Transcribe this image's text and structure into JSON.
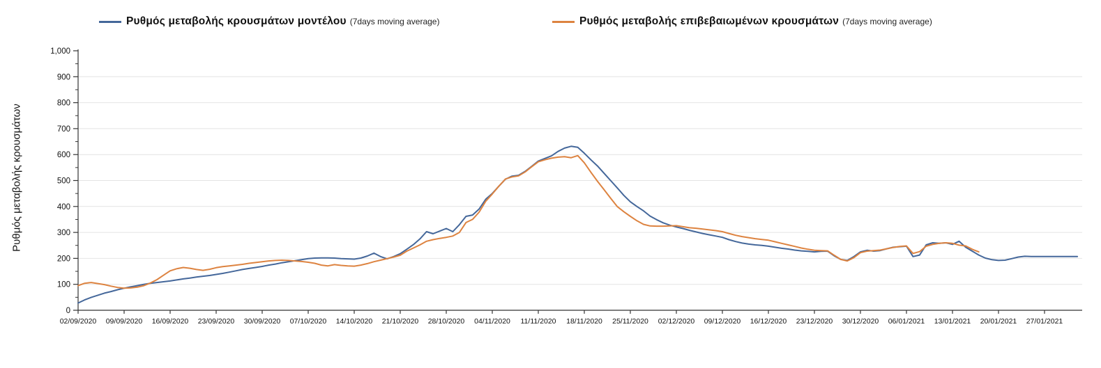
{
  "legend": {
    "items": [
      {
        "suffix": "(7days moving average)"
      },
      {
        "suffix": "(7days moving average)"
      }
    ]
  },
  "chart_data": {
    "type": "line",
    "title": "",
    "xlabel": "",
    "ylabel": "Ρυθμός μεταβολής κρουσμάτων",
    "ylim": [
      0,
      1000
    ],
    "y_tick_step": 100,
    "y_minor_tick_step": 50,
    "grid": "horizontal-light",
    "legend_position": "top",
    "y_tick_labels": [
      "0",
      "100",
      "200",
      "300",
      "400",
      "500",
      "600",
      "700",
      "800",
      "900",
      "1,000"
    ],
    "x_tick_labels": [
      "02/09/2020",
      "09/09/2020",
      "16/09/2020",
      "23/09/2020",
      "30/09/2020",
      "07/10/2020",
      "14/10/2020",
      "21/10/2020",
      "28/10/2020",
      "04/11/2020",
      "11/11/2020",
      "18/11/2020",
      "25/11/2020",
      "02/12/2020",
      "09/12/2020",
      "16/12/2020",
      "23/12/2020",
      "30/12/2020",
      "06/01/2021",
      "13/01/2021",
      "20/01/2021",
      "27/01/2021"
    ],
    "x_start_date": "02/09/2020",
    "x_interval_days": 1,
    "x_tick_interval_days": 7,
    "series": [
      {
        "name": "Ρυθμός μεταβολής κρουσμάτων μοντέλου",
        "color": "#44679a",
        "values": [
          28,
          40,
          50,
          58,
          66,
          72,
          79,
          85,
          90,
          95,
          100,
          104,
          107,
          110,
          113,
          117,
          121,
          124,
          128,
          131,
          134,
          138,
          142,
          147,
          152,
          157,
          161,
          165,
          169,
          174,
          178,
          183,
          187,
          191,
          195,
          199,
          201,
          202,
          202,
          201,
          199,
          198,
          197,
          201,
          209,
          220,
          207,
          198,
          207,
          218,
          235,
          253,
          275,
          303,
          295,
          305,
          315,
          303,
          330,
          362,
          367,
          390,
          428,
          450,
          478,
          505,
          517,
          520,
          535,
          555,
          575,
          585,
          595,
          612,
          625,
          632,
          628,
          605,
          580,
          556,
          528,
          500,
          472,
          443,
          418,
          400,
          383,
          363,
          349,
          337,
          328,
          321,
          315,
          308,
          302,
          296,
          291,
          286,
          281,
          272,
          265,
          259,
          255,
          252,
          250,
          247,
          243,
          239,
          236,
          232,
          229,
          227,
          225,
          227,
          228,
          210,
          196,
          192,
          207,
          225,
          231,
          228,
          230,
          237,
          243,
          245,
          247,
          207,
          213,
          252,
          260,
          258,
          260,
          254,
          266,
          243,
          228,
          213,
          201,
          195,
          192,
          193,
          199,
          205,
          208,
          207,
          207,
          207,
          207,
          207,
          207,
          207,
          207
        ]
      },
      {
        "name": "Ρυθμός μεταβολής επιβεβαιωμένων κρουσμάτων",
        "color": "#dd8340",
        "values": [
          95,
          104,
          107,
          103,
          99,
          93,
          88,
          85,
          86,
          89,
          95,
          105,
          118,
          135,
          152,
          160,
          165,
          162,
          157,
          154,
          158,
          164,
          168,
          171,
          174,
          177,
          181,
          184,
          187,
          190,
          192,
          193,
          192,
          190,
          188,
          185,
          181,
          174,
          171,
          176,
          173,
          171,
          170,
          174,
          180,
          187,
          193,
          199,
          205,
          212,
          228,
          240,
          252,
          266,
          272,
          277,
          281,
          286,
          300,
          338,
          350,
          378,
          420,
          448,
          478,
          506,
          514,
          518,
          533,
          553,
          572,
          580,
          586,
          590,
          592,
          588,
          596,
          568,
          532,
          497,
          465,
          432,
          400,
          380,
          362,
          345,
          331,
          325,
          324,
          324,
          325,
          326,
          322,
          318,
          316,
          313,
          310,
          307,
          303,
          296,
          289,
          284,
          280,
          276,
          273,
          270,
          264,
          258,
          252,
          246,
          240,
          235,
          231,
          230,
          229,
          212,
          196,
          190,
          203,
          222,
          228,
          230,
          232,
          237,
          242,
          246,
          248,
          219,
          226,
          247,
          254,
          258,
          260,
          258,
          251,
          248,
          235,
          225
        ]
      }
    ]
  }
}
